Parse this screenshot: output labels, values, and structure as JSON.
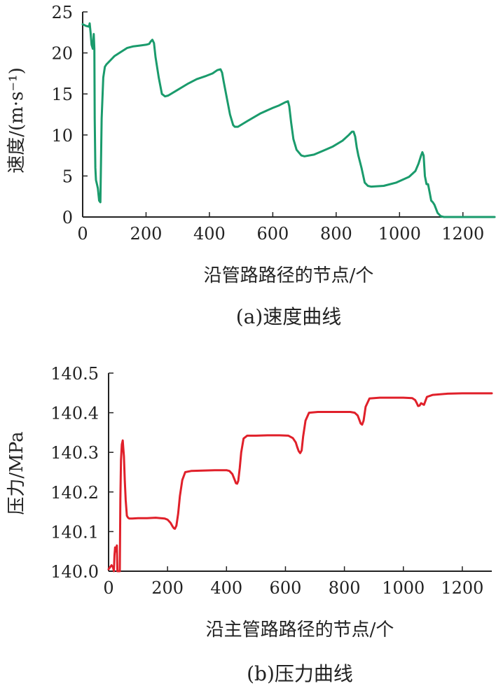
{
  "chart_data": [
    {
      "type": "line",
      "caption": "(a)速度曲线",
      "xlabel": "沿管路路径的节点/个",
      "ylabel": "速度/(m·s⁻¹)",
      "xlim": [
        0,
        1300
      ],
      "ylim": [
        0,
        25
      ],
      "xticks": [
        0,
        200,
        400,
        600,
        800,
        1000,
        1200
      ],
      "yticks": [
        0,
        5,
        10,
        15,
        20,
        25
      ],
      "ytick_labels": [
        "0",
        "5",
        "10",
        "15",
        "20",
        "25"
      ],
      "grid": false,
      "color": "#1a9b6c",
      "series": [
        {
          "x": [
            0,
            10,
            20,
            22,
            25,
            28,
            32,
            35,
            37,
            38,
            40,
            42,
            45,
            48,
            52,
            56,
            60,
            65,
            70,
            75,
            80,
            90,
            100,
            120,
            140,
            160,
            180,
            200,
            210,
            215,
            220,
            225,
            230,
            240,
            250,
            260,
            270,
            300,
            330,
            360,
            390,
            410,
            425,
            435,
            440,
            445,
            455,
            465,
            475,
            480,
            490,
            520,
            560,
            600,
            620,
            640,
            648,
            652,
            658,
            665,
            675,
            690,
            700,
            730,
            760,
            790,
            820,
            840,
            850,
            855,
            860,
            865,
            870,
            880,
            890,
            900,
            910,
            950,
            990,
            1030,
            1050,
            1060,
            1068,
            1072,
            1076,
            1080,
            1085,
            1090,
            1095,
            1100,
            1105,
            1110,
            1120,
            1130,
            1140,
            1150,
            1200,
            1250,
            1300
          ],
          "y": [
            23.5,
            23.3,
            23.2,
            23.6,
            22.5,
            21.0,
            20.5,
            22.3,
            20.5,
            12.0,
            6.0,
            4.5,
            4.0,
            3.5,
            2.0,
            1.8,
            12.0,
            17.0,
            18.3,
            18.6,
            18.8,
            19.2,
            19.6,
            20.1,
            20.6,
            20.8,
            20.9,
            21.0,
            21.1,
            21.4,
            21.6,
            21.2,
            19.5,
            17.0,
            15.0,
            14.7,
            14.8,
            15.5,
            16.2,
            16.8,
            17.2,
            17.5,
            17.9,
            18.0,
            17.6,
            16.5,
            14.5,
            12.5,
            11.2,
            11.0,
            11.0,
            11.7,
            12.6,
            13.3,
            13.6,
            14.0,
            14.1,
            13.5,
            11.5,
            9.5,
            8.2,
            7.5,
            7.4,
            7.6,
            8.1,
            8.6,
            9.3,
            10.0,
            10.4,
            10.4,
            9.8,
            8.5,
            7.5,
            6.0,
            4.2,
            3.8,
            3.7,
            3.8,
            4.2,
            4.9,
            5.6,
            6.5,
            7.5,
            7.9,
            7.5,
            5.0,
            4.0,
            4.0,
            3.0,
            2.0,
            1.8,
            1.5,
            0.5,
            0.1,
            0.0,
            0.0,
            0.0,
            0.0,
            0.0
          ]
        }
      ]
    },
    {
      "type": "line",
      "caption": "(b)压力曲线",
      "xlabel": "沿主管路路径的节点/个",
      "ylabel": "压力/MPa",
      "xlim": [
        0,
        1300
      ],
      "ylim": [
        140.0,
        140.5
      ],
      "xticks": [
        0,
        200,
        400,
        600,
        800,
        1000,
        1200
      ],
      "yticks": [
        140.0,
        140.1,
        140.2,
        140.3,
        140.4,
        140.5
      ],
      "ytick_labels": [
        "140.0",
        "140.1",
        "140.2",
        "140.3",
        "140.4",
        "140.5"
      ],
      "grid": false,
      "color": "#e0202a",
      "series": [
        {
          "x": [
            0,
            5,
            10,
            15,
            18,
            20,
            22,
            25,
            28,
            30,
            32,
            35,
            38,
            40,
            42,
            45,
            48,
            50,
            52,
            55,
            58,
            62,
            66,
            70,
            80,
            100,
            130,
            160,
            190,
            200,
            210,
            218,
            222,
            225,
            230,
            236,
            242,
            250,
            260,
            280,
            320,
            360,
            400,
            410,
            420,
            428,
            432,
            436,
            440,
            445,
            450,
            458,
            470,
            500,
            540,
            580,
            610,
            625,
            635,
            640,
            645,
            650,
            655,
            660,
            668,
            680,
            710,
            750,
            790,
            820,
            835,
            845,
            850,
            855,
            860,
            865,
            872,
            885,
            920,
            960,
            1000,
            1030,
            1040,
            1045,
            1050,
            1055,
            1060,
            1070,
            1080,
            1100,
            1150,
            1200,
            1250,
            1300
          ],
          "y": [
            140.005,
            140.01,
            140.015,
            140.01,
            140.0,
            140.04,
            140.06,
            140.05,
            140.065,
            140.0,
            140.0,
            140.0,
            140.0,
            140.18,
            140.28,
            140.32,
            140.33,
            140.31,
            140.29,
            140.23,
            140.18,
            140.14,
            140.135,
            140.133,
            140.133,
            140.134,
            140.134,
            140.135,
            140.133,
            140.13,
            140.122,
            140.112,
            140.108,
            140.107,
            140.115,
            140.145,
            140.19,
            140.23,
            140.25,
            140.253,
            140.254,
            140.255,
            140.255,
            140.253,
            140.245,
            140.23,
            140.222,
            140.221,
            140.228,
            140.26,
            140.3,
            140.335,
            140.342,
            140.342,
            140.343,
            140.343,
            140.342,
            140.336,
            140.325,
            140.313,
            140.303,
            140.298,
            140.305,
            140.34,
            140.38,
            140.4,
            140.402,
            140.402,
            140.402,
            140.402,
            140.4,
            140.393,
            140.383,
            140.373,
            140.37,
            140.38,
            140.415,
            140.436,
            140.438,
            140.438,
            140.438,
            140.437,
            140.432,
            140.425,
            140.417,
            140.418,
            140.424,
            140.42,
            140.44,
            140.445,
            140.448,
            140.449,
            140.449,
            140.449
          ]
        }
      ]
    }
  ]
}
